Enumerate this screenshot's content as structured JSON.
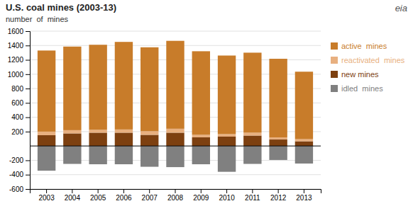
{
  "chart_data": {
    "type": "bar",
    "stacked": true,
    "title": "U.S. coal mines (2003-13)",
    "ylabel": "number  of  mines",
    "categories": [
      "2003",
      "2004",
      "2005",
      "2006",
      "2007",
      "2008",
      "2009",
      "2010",
      "2011",
      "2012",
      "2013"
    ],
    "series": [
      {
        "name": "new mines",
        "color": "#7d4010",
        "values": [
          150,
          175,
          185,
          185,
          155,
          185,
          120,
          130,
          145,
          90,
          65
        ]
      },
      {
        "name": "reactivated  mines",
        "color": "#e8b080",
        "values": [
          50,
          45,
          40,
          45,
          50,
          55,
          35,
          35,
          40,
          30,
          30
        ]
      },
      {
        "name": "active  mines",
        "color": "#c87c2a",
        "values": [
          1130,
          1165,
          1185,
          1220,
          1170,
          1225,
          1165,
          1095,
          1115,
          1095,
          940
        ]
      },
      {
        "name": "idled  mines",
        "color": "#808080",
        "values": [
          -345,
          -250,
          -255,
          -255,
          -290,
          -295,
          -255,
          -360,
          -250,
          -195,
          -245
        ]
      }
    ],
    "ylim": [
      -600,
      1600
    ],
    "yticks": [
      -600,
      -400,
      -200,
      200,
      400,
      600,
      800,
      1000,
      1200,
      1400,
      1600
    ],
    "grid": true,
    "legend": "right",
    "annotations": [
      "eia"
    ]
  }
}
